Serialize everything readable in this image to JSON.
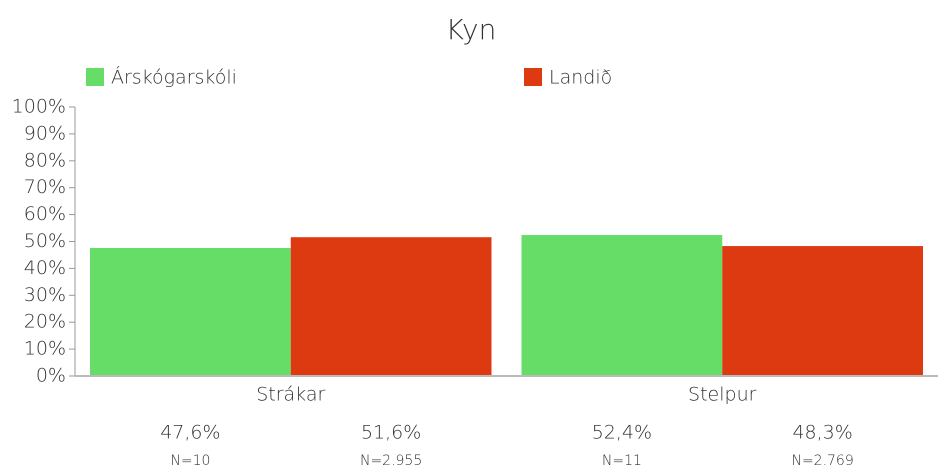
{
  "chart_data": {
    "type": "bar",
    "title": "Kyn",
    "categories": [
      "Strákar",
      "Stelpur"
    ],
    "series": [
      {
        "name": "Árskógarskóli",
        "color": "#66dd66",
        "values": [
          47.6,
          52.4
        ],
        "value_labels": [
          "47,6%",
          "52,4%"
        ],
        "n_labels": [
          "N=10",
          "N=11"
        ]
      },
      {
        "name": "Landið",
        "color": "#dd3a12",
        "values": [
          51.6,
          48.3
        ],
        "value_labels": [
          "51,6%",
          "48,3%"
        ],
        "n_labels": [
          "N=2.955",
          "N=2.769"
        ]
      }
    ],
    "ylim": [
      0,
      100
    ],
    "yticks": [
      {
        "value": 0,
        "label": "0%"
      },
      {
        "value": 10,
        "label": "10%"
      },
      {
        "value": 20,
        "label": "20%"
      },
      {
        "value": 30,
        "label": "30%"
      },
      {
        "value": 40,
        "label": "40%"
      },
      {
        "value": 50,
        "label": "50%"
      },
      {
        "value": 60,
        "label": "60%"
      },
      {
        "value": 70,
        "label": "70%"
      },
      {
        "value": 80,
        "label": "80%"
      },
      {
        "value": 90,
        "label": "90%"
      },
      {
        "value": 100,
        "label": "100%"
      }
    ],
    "legend": "top"
  }
}
